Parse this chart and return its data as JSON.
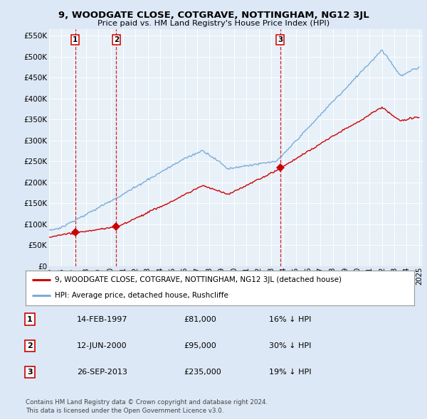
{
  "title": "9, WOODGATE CLOSE, COTGRAVE, NOTTINGHAM, NG12 3JL",
  "subtitle": "Price paid vs. HM Land Registry's House Price Index (HPI)",
  "yticks": [
    0,
    50000,
    100000,
    150000,
    200000,
    250000,
    300000,
    350000,
    400000,
    450000,
    500000,
    550000
  ],
  "ytick_labels": [
    "£0",
    "£50K",
    "£100K",
    "£150K",
    "£200K",
    "£250K",
    "£300K",
    "£350K",
    "£400K",
    "£450K",
    "£500K",
    "£550K"
  ],
  "ylim": [
    0,
    565000
  ],
  "xlim_start": 1995.3,
  "xlim_end": 2025.3,
  "sale_dates": [
    1997.12,
    2000.45,
    2013.73
  ],
  "sale_prices": [
    81000,
    95000,
    235000
  ],
  "sale_labels": [
    "1",
    "2",
    "3"
  ],
  "hpi_color": "#7aacda",
  "price_color": "#cc0000",
  "dashed_line_color": "#cc0000",
  "legend_label_price": "9, WOODGATE CLOSE, COTGRAVE, NOTTINGHAM, NG12 3JL (detached house)",
  "legend_label_hpi": "HPI: Average price, detached house, Rushcliffe",
  "table_data": [
    [
      "1",
      "14-FEB-1997",
      "£81,000",
      "16% ↓ HPI"
    ],
    [
      "2",
      "12-JUN-2000",
      "£95,000",
      "30% ↓ HPI"
    ],
    [
      "3",
      "26-SEP-2013",
      "£235,000",
      "19% ↓ HPI"
    ]
  ],
  "footer": "Contains HM Land Registry data © Crown copyright and database right 2024.\nThis data is licensed under the Open Government Licence v3.0.",
  "background_color": "#dce8f5",
  "plot_bg_color": "#e8f0f8"
}
